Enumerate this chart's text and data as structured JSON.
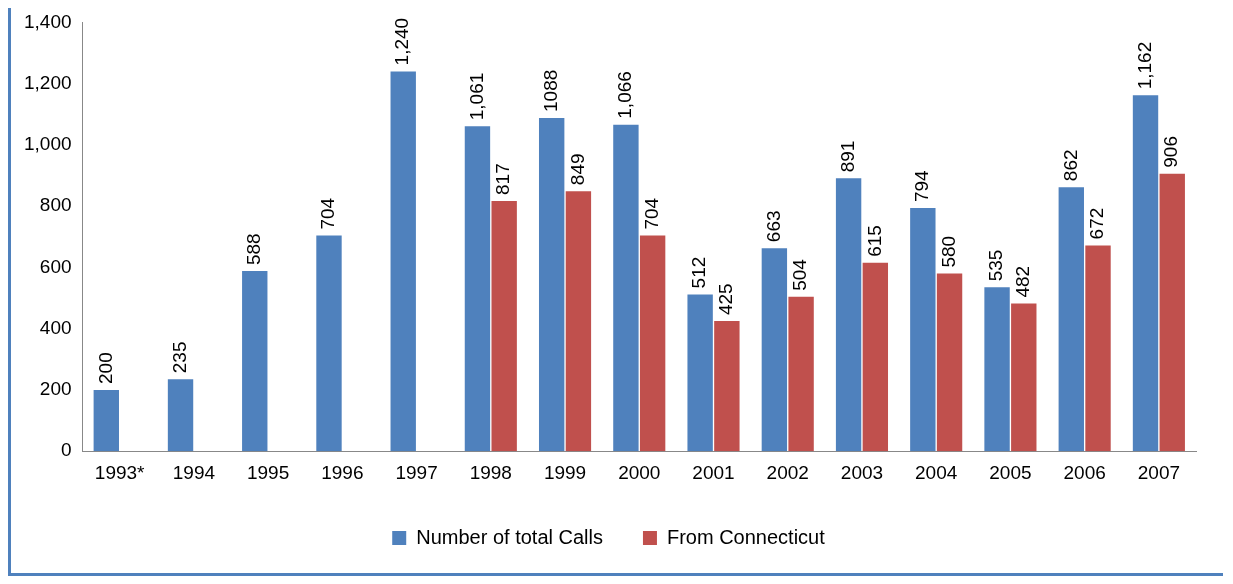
{
  "chart_data": {
    "type": "bar",
    "categories": [
      "1993*",
      "1994",
      "1995",
      "1996",
      "1997",
      "1998",
      "1999",
      "2000",
      "2001",
      "2002",
      "2003",
      "2004",
      "2005",
      "2006",
      "2007"
    ],
    "series": [
      {
        "name": "Number of total Calls",
        "color": "#4f81bd",
        "values": [
          200,
          235,
          588,
          704,
          1240,
          1061,
          1088,
          1066,
          512,
          663,
          891,
          794,
          535,
          862,
          1162
        ],
        "value_labels": [
          "200",
          "235",
          "588",
          "704",
          "1,240",
          "1,061",
          "1088",
          "1,066",
          "512",
          "663",
          "891",
          "794",
          "535",
          "862",
          "1,162"
        ]
      },
      {
        "name": "From Connecticut",
        "color": "#c0504d",
        "values": [
          null,
          null,
          null,
          null,
          null,
          817,
          849,
          704,
          425,
          504,
          615,
          580,
          482,
          672,
          906
        ],
        "value_labels": [
          null,
          null,
          null,
          null,
          null,
          "817",
          "849",
          "704",
          "425",
          "504",
          "615",
          "580",
          "482",
          "672",
          "906"
        ]
      }
    ],
    "ylim": [
      0,
      1400
    ],
    "yticks": [
      0,
      200,
      400,
      600,
      800,
      {
        "value": 1000,
        "label": "1,000"
      },
      {
        "value": 1200,
        "label": "1,200"
      },
      {
        "value": 1400,
        "label": "1,400"
      }
    ],
    "grid": false,
    "legend": "bottom"
  }
}
